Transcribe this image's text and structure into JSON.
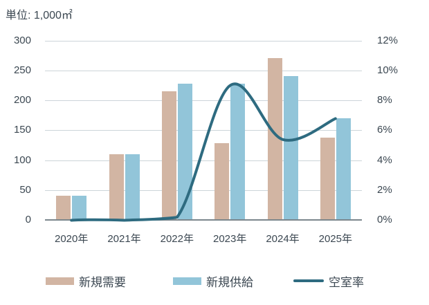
{
  "unit_label": "単位: 1,000㎡",
  "chart_data": {
    "type": "combo-bar-line",
    "categories": [
      "2020年",
      "2021年",
      "2022年",
      "2023年",
      "2024年",
      "2025年"
    ],
    "series": [
      {
        "name": "新規需要",
        "type": "bar",
        "axis": "left",
        "color": "#d2b5a3",
        "values": [
          40,
          110,
          215,
          128,
          270,
          138
        ]
      },
      {
        "name": "新規供給",
        "type": "bar",
        "axis": "left",
        "color": "#92c5d9",
        "values": [
          40,
          110,
          228,
          228,
          240,
          170
        ]
      },
      {
        "name": "空室率",
        "type": "line",
        "axis": "right",
        "color": "#2e6b80",
        "values": [
          0.0,
          0.0,
          0.2,
          9.0,
          5.4,
          6.8
        ]
      }
    ],
    "left_axis": {
      "min": 0,
      "max": 300,
      "step": 50,
      "tick_labels": [
        "300",
        "250",
        "200",
        "150",
        "100",
        "50",
        "0"
      ]
    },
    "right_axis": {
      "min": 0,
      "max": 12,
      "step": 2,
      "tick_labels": [
        "12%",
        "10%",
        "8%",
        "6%",
        "4%",
        "2%",
        "0%"
      ]
    },
    "grid": true,
    "legend_position": "bottom",
    "title": "単位: 1,000㎡"
  },
  "colors": {
    "demand_bar": "#d2b5a3",
    "supply_bar": "#92c5d9",
    "vacancy_line": "#2e6b80",
    "text": "#3b4751",
    "gridline": "#ccd4d9",
    "axis": "#7b868c"
  }
}
